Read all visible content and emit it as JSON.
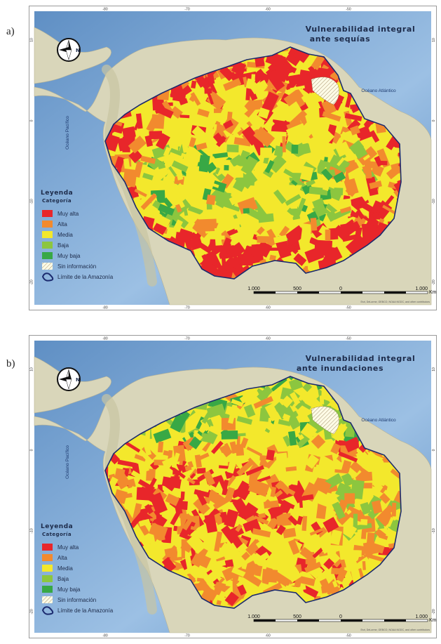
{
  "panels": [
    {
      "letter": "a)",
      "title_line1": "Vulnerabilidad integral",
      "title_line2": "ante sequías",
      "pattern": "drought",
      "ocean_atlantic": "Océano Atlántico",
      "ocean_pacific": "Océano Pacífico",
      "legend_title": "Leyenda",
      "legend_subtitle": "Categoría",
      "legend_items": [
        {
          "label": "Muy alta",
          "color": "#e8262a"
        },
        {
          "label": "Alta",
          "color": "#f28a2e"
        },
        {
          "label": "Media",
          "color": "#f3e82c"
        },
        {
          "label": "Baja",
          "color": "#8cc63f"
        },
        {
          "label": "Muy baja",
          "color": "#38a845"
        },
        {
          "label": "Sin información",
          "color": "hatch"
        },
        {
          "label": "Límite de la Amazonía",
          "color": "boundary"
        }
      ],
      "scale_labels": [
        "1.000",
        "500",
        "0",
        "1.000"
      ],
      "scale_unit": "Km",
      "credits": "Esri, DeLorme, GEBCO, NOAA NGDC, and other contributors",
      "north_label": "N",
      "lon_ticks": [
        "-80",
        "-70",
        "-60",
        "-50"
      ],
      "lat_ticks": [
        "10",
        "0",
        "-10",
        "-20"
      ]
    },
    {
      "letter": "b)",
      "title_line1": "Vulnerabilidad integral",
      "title_line2": "ante inundaciones",
      "pattern": "flood",
      "ocean_atlantic": "Océano Atlántico",
      "ocean_pacific": "Océano Pacífico",
      "legend_title": "Leyenda",
      "legend_subtitle": "Categoría",
      "legend_items": [
        {
          "label": "Muy alta",
          "color": "#e8262a"
        },
        {
          "label": "Alta",
          "color": "#f28a2e"
        },
        {
          "label": "Media",
          "color": "#f3e82c"
        },
        {
          "label": "Baja",
          "color": "#8cc63f"
        },
        {
          "label": "Muy baja",
          "color": "#38a845"
        },
        {
          "label": "Sin información",
          "color": "hatch"
        },
        {
          "label": "Límite de la Amazonía",
          "color": "boundary"
        }
      ],
      "scale_labels": [
        "1.000",
        "500",
        "0",
        "1.000"
      ],
      "scale_unit": "Km",
      "credits": "Esri, DeLorme, GEBCO, NOAA NGDC, and other contributors",
      "north_label": "N",
      "lon_ticks": [
        "-80",
        "-70",
        "-60",
        "-50"
      ],
      "lat_ticks": [
        "10",
        "0",
        "-10",
        "-20"
      ]
    }
  ],
  "colors": {
    "ocean": "#5f8fc4",
    "ocean_light": "#9cc0e4",
    "land": "#d9d6ba",
    "land_relief": "#c8c4a2",
    "boundary": "#1b2a6e"
  }
}
